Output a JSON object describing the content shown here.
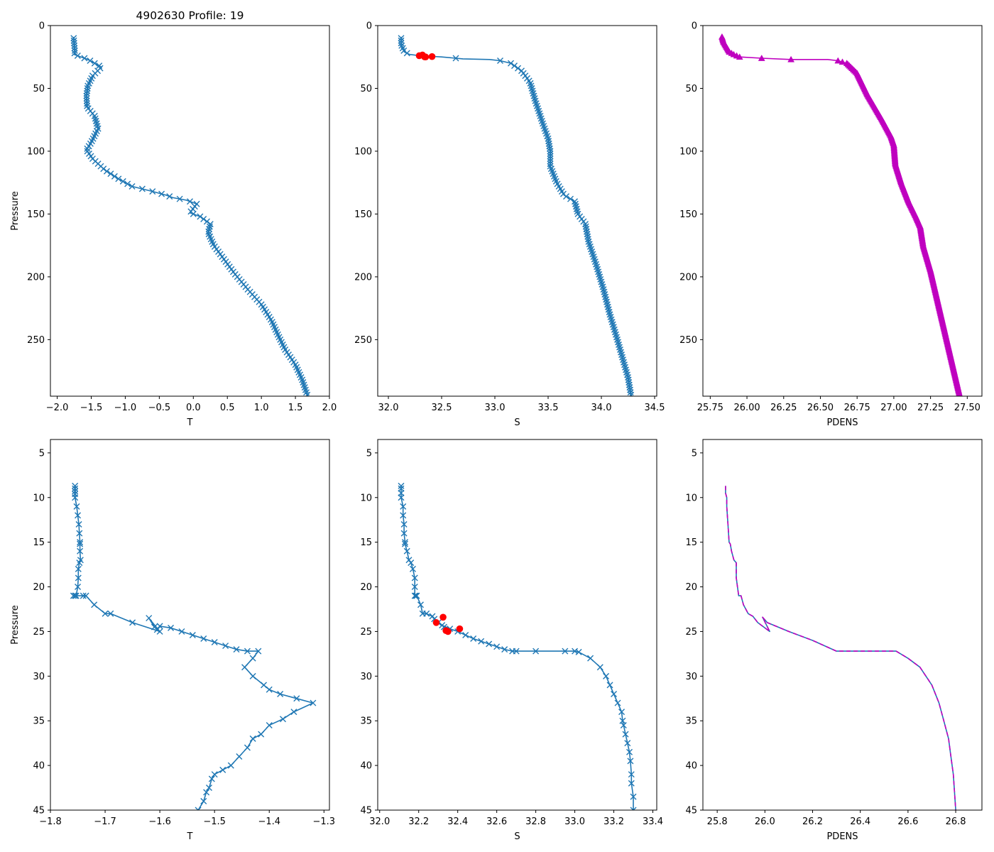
{
  "figure": {
    "title": "4902630 Profile: 19",
    "colors": {
      "line": "#1f77b4",
      "magenta": "#bf00bf",
      "red": "#ff0000",
      "axis": "#000000"
    }
  },
  "chart_data": [
    {
      "type": "line",
      "panel": "top-left",
      "title": "4902630 Profile: 19",
      "xlabel": "T",
      "ylabel": "Pressure",
      "xlim": [
        -2.1,
        2.0
      ],
      "ylim": [
        295,
        0
      ],
      "y_inverted": true,
      "xticks": [
        -2.0,
        -1.5,
        -1.0,
        -0.5,
        0.0,
        0.5,
        1.0,
        1.5,
        2.0
      ],
      "xtick_labels": [
        "−2.0",
        "−1.5",
        "−1.0",
        "−0.5",
        "0.0",
        "0.5",
        "1.0",
        "1.5",
        "2.0"
      ],
      "yticks": [
        0,
        50,
        100,
        150,
        200,
        250
      ],
      "ytick_labels": [
        "0",
        "50",
        "100",
        "150",
        "200",
        "250"
      ],
      "marker": "x",
      "markevery_pressure": 2,
      "series": [
        {
          "name": "T",
          "color": "#1f77b4",
          "x": [
            -1.76,
            -1.75,
            -1.74,
            -1.75,
            -1.65,
            -1.55,
            -1.35,
            -1.48,
            -1.55,
            -1.57,
            -1.56,
            -1.45,
            -1.4,
            -1.5,
            -1.57,
            -1.48,
            -1.3,
            -1.1,
            -0.9,
            -0.6,
            -0.4,
            -0.3,
            -0.1,
            0.05,
            -0.05,
            0.1,
            0.25,
            0.22,
            0.3,
            0.45,
            0.6,
            0.8,
            1.0,
            1.15,
            1.25,
            1.35,
            1.5,
            1.6,
            1.68
          ],
          "y": [
            9,
            15,
            21,
            23,
            25,
            27,
            33,
            40,
            48,
            56,
            65,
            72,
            82,
            93,
            99,
            106,
            115,
            122,
            128,
            132,
            135,
            137,
            139,
            142,
            149,
            152,
            158,
            165,
            175,
            186,
            197,
            210,
            222,
            235,
            247,
            258,
            270,
            282,
            295
          ]
        }
      ]
    },
    {
      "type": "line",
      "panel": "top-middle",
      "xlabel": "S",
      "ylabel": "",
      "xlim": [
        31.9,
        34.52
      ],
      "ylim": [
        295,
        0
      ],
      "y_inverted": true,
      "xticks": [
        32.0,
        32.5,
        33.0,
        33.5,
        34.0,
        34.5
      ],
      "xtick_labels": [
        "32.0",
        "32.5",
        "33.0",
        "33.5",
        "34.0",
        "34.5"
      ],
      "yticks": [
        0,
        50,
        100,
        150,
        200,
        250
      ],
      "ytick_labels": [
        "0",
        "50",
        "100",
        "150",
        "200",
        "250"
      ],
      "marker": "x",
      "markevery_pressure": 2,
      "series": [
        {
          "name": "S",
          "color": "#1f77b4",
          "x": [
            32.12,
            32.12,
            32.15,
            32.2,
            32.3,
            32.5,
            32.7,
            32.95,
            33.05,
            33.15,
            33.25,
            33.33,
            33.38,
            33.45,
            33.5,
            33.52,
            33.52,
            33.58,
            33.65,
            33.75,
            33.78,
            33.85,
            33.88,
            33.95,
            34.02,
            34.08,
            34.15,
            34.2,
            34.25,
            34.28
          ],
          "y": [
            9,
            15,
            21,
            23,
            24,
            25,
            26.5,
            27,
            28,
            30,
            36,
            45,
            60,
            78,
            90,
            100,
            112,
            125,
            135,
            140,
            150,
            158,
            172,
            190,
            210,
            230,
            250,
            265,
            280,
            295
          ]
        }
      ],
      "highlight_points": {
        "name": "flagged",
        "color": "#ff0000",
        "marker": "o",
        "x": [
          32.29,
          32.32,
          32.34,
          32.35,
          32.41
        ],
        "y": [
          24.0,
          23.4,
          24.9,
          25.0,
          24.7
        ]
      }
    },
    {
      "type": "line",
      "panel": "top-right",
      "xlabel": "PDENS",
      "ylabel": "",
      "xlim": [
        25.7,
        27.6
      ],
      "ylim": [
        295,
        0
      ],
      "y_inverted": true,
      "xticks": [
        25.75,
        26.0,
        26.25,
        26.5,
        26.75,
        27.0,
        27.25,
        27.5
      ],
      "xtick_labels": [
        "25.75",
        "26.00",
        "26.25",
        "26.50",
        "26.75",
        "27.00",
        "27.25",
        "27.50"
      ],
      "yticks": [
        0,
        50,
        100,
        150,
        200,
        250
      ],
      "ytick_labels": [
        "0",
        "50",
        "100",
        "150",
        "200",
        "250"
      ],
      "marker": "triangle",
      "markevery_pressure": 1,
      "series": [
        {
          "name": "PDENS",
          "color": "#bf00bf",
          "x": [
            25.83,
            25.84,
            25.86,
            25.88,
            25.91,
            25.95,
            26.1,
            26.3,
            26.55,
            26.62,
            26.68,
            26.75,
            26.82,
            26.92,
            26.98,
            27.0,
            27.01,
            27.05,
            27.1,
            27.15,
            27.18,
            27.2,
            27.25,
            27.3,
            27.35,
            27.4,
            27.45
          ],
          "y": [
            9,
            13,
            17,
            21,
            23,
            25,
            26,
            27,
            27,
            28,
            30,
            38,
            55,
            75,
            88,
            95,
            110,
            125,
            140,
            152,
            160,
            175,
            195,
            220,
            245,
            270,
            295
          ]
        }
      ]
    },
    {
      "type": "line",
      "panel": "bottom-left",
      "xlabel": "T",
      "ylabel": "Pressure",
      "xlim": [
        -1.8,
        -1.29
      ],
      "ylim": [
        45,
        3.5
      ],
      "y_inverted": true,
      "xticks": [
        -1.8,
        -1.7,
        -1.6,
        -1.5,
        -1.4,
        -1.3
      ],
      "xtick_labels": [
        "−1.8",
        "−1.7",
        "−1.6",
        "−1.5",
        "−1.4",
        "−1.3"
      ],
      "yticks": [
        5,
        10,
        15,
        20,
        25,
        30,
        35,
        40,
        45
      ],
      "ytick_labels": [
        "5",
        "10",
        "15",
        "20",
        "25",
        "30",
        "35",
        "40",
        "45"
      ],
      "marker": "x",
      "series": [
        {
          "name": "T",
          "color": "#1f77b4",
          "x": [
            -1.755,
            -1.755,
            -1.755,
            -1.755,
            -1.755,
            -1.752,
            -1.75,
            -1.748,
            -1.747,
            -1.746,
            -1.746,
            -1.746,
            -1.745,
            -1.747,
            -1.749,
            -1.749,
            -1.75,
            -1.753,
            -1.755,
            -1.758,
            -1.74,
            -1.735,
            -1.72,
            -1.7,
            -1.69,
            -1.65,
            -1.6,
            -1.62,
            -1.61,
            -1.605,
            -1.6,
            -1.58,
            -1.56,
            -1.54,
            -1.52,
            -1.5,
            -1.48,
            -1.46,
            -1.44,
            -1.42,
            -1.43,
            -1.445,
            -1.43,
            -1.41,
            -1.4,
            -1.38,
            -1.35,
            -1.32,
            -1.355,
            -1.375,
            -1.4,
            -1.415,
            -1.43,
            -1.44,
            -1.455,
            -1.47,
            -1.485,
            -1.5,
            -1.505,
            -1.51,
            -1.515,
            -1.52,
            -1.53
          ],
          "y": [
            8.7,
            9.0,
            9.3,
            9.6,
            10.0,
            11.0,
            12.0,
            13.0,
            14.0,
            15.0,
            15.2,
            16.0,
            17.0,
            17.3,
            18.0,
            19.0,
            20.0,
            21.0,
            21.0,
            21.0,
            21.0,
            21.0,
            22.0,
            23.0,
            23.0,
            24.0,
            25.0,
            23.5,
            24.5,
            24.8,
            24.4,
            24.6,
            25.0,
            25.4,
            25.8,
            26.2,
            26.6,
            27.0,
            27.2,
            27.2,
            28.0,
            29.0,
            30.0,
            31.0,
            31.5,
            32.0,
            32.5,
            33.0,
            34.0,
            34.8,
            35.5,
            36.5,
            37.0,
            38.0,
            39.0,
            40.0,
            40.5,
            41.0,
            41.5,
            42.5,
            43.0,
            44.0,
            45.0
          ]
        }
      ]
    },
    {
      "type": "line",
      "panel": "bottom-middle",
      "xlabel": "S",
      "ylabel": "",
      "xlim": [
        31.99,
        33.42
      ],
      "ylim": [
        45,
        3.5
      ],
      "y_inverted": true,
      "xticks": [
        32.0,
        32.2,
        32.4,
        32.6,
        32.8,
        33.0,
        33.2,
        33.4
      ],
      "xtick_labels": [
        "32.0",
        "32.2",
        "32.4",
        "32.6",
        "32.8",
        "33.0",
        "33.2",
        "33.4"
      ],
      "yticks": [
        5,
        10,
        15,
        20,
        25,
        30,
        35,
        40,
        45
      ],
      "ytick_labels": [
        "5",
        "10",
        "15",
        "20",
        "25",
        "30",
        "35",
        "40",
        "45"
      ],
      "marker": "x",
      "series": [
        {
          "name": "S",
          "color": "#1f77b4",
          "x": [
            32.11,
            32.11,
            32.11,
            32.11,
            32.12,
            32.12,
            32.125,
            32.125,
            32.13,
            32.13,
            32.14,
            32.15,
            32.16,
            32.17,
            32.18,
            32.18,
            32.18,
            32.185,
            32.19,
            32.21,
            32.22,
            32.24,
            32.27,
            32.3,
            32.33,
            32.28,
            32.32,
            32.36,
            32.4,
            32.44,
            32.48,
            32.52,
            32.56,
            32.6,
            32.64,
            32.68,
            32.7,
            32.8,
            32.95,
            33.0,
            33.02,
            33.08,
            33.13,
            33.16,
            33.18,
            33.2,
            33.22,
            33.24,
            33.245,
            33.25,
            33.26,
            33.27,
            33.28,
            33.285,
            33.29,
            33.29,
            33.3,
            33.3
          ],
          "y": [
            8.7,
            9.0,
            9.5,
            10.0,
            11.0,
            12.0,
            13.0,
            14.0,
            15.0,
            15.2,
            16.0,
            17.0,
            17.3,
            18.0,
            19.0,
            20.0,
            21.0,
            21.0,
            21.0,
            22.0,
            23.0,
            23.0,
            23.3,
            24.0,
            24.5,
            23.6,
            24.3,
            24.7,
            25.0,
            25.4,
            25.8,
            26.1,
            26.4,
            26.7,
            27.0,
            27.2,
            27.2,
            27.2,
            27.2,
            27.2,
            27.3,
            28.0,
            29.0,
            30.0,
            31.0,
            32.0,
            33.0,
            34.0,
            35.0,
            35.5,
            36.5,
            37.5,
            38.5,
            39.5,
            41.0,
            42.0,
            43.5,
            45.0
          ]
        }
      ],
      "highlight_points": {
        "name": "flagged",
        "color": "#ff0000",
        "marker": "o",
        "x": [
          32.29,
          32.325,
          32.34,
          32.35,
          32.41
        ],
        "y": [
          24.0,
          23.4,
          24.9,
          25.0,
          24.7
        ]
      }
    },
    {
      "type": "line",
      "panel": "bottom-right",
      "xlabel": "PDENS",
      "ylabel": "",
      "xlim": [
        25.74,
        26.91
      ],
      "ylim": [
        45,
        3.5
      ],
      "y_inverted": true,
      "xticks": [
        25.8,
        26.0,
        26.2,
        26.4,
        26.6,
        26.8
      ],
      "xtick_labels": [
        "25.8",
        "26.0",
        "26.2",
        "26.4",
        "26.6",
        "26.8"
      ],
      "yticks": [
        5,
        10,
        15,
        20,
        25,
        30,
        35,
        40,
        45
      ],
      "ytick_labels": [
        "5",
        "10",
        "15",
        "20",
        "25",
        "30",
        "35",
        "40",
        "45"
      ],
      "marker": "none",
      "series": [
        {
          "name": "PDENS",
          "color": "#1f77b4",
          "style": "solid",
          "x": [
            25.835,
            25.835,
            25.84,
            25.84,
            25.845,
            25.85,
            25.855,
            25.86,
            25.87,
            25.88,
            25.88,
            25.89,
            25.9,
            25.91,
            25.93,
            25.95,
            25.97,
            26.02,
            25.99,
            26.01,
            26.1,
            26.2,
            26.3,
            26.55,
            26.6,
            26.65,
            26.7,
            26.73,
            26.75,
            26.77,
            26.78,
            26.79,
            26.8
          ],
          "y": [
            8.7,
            9.5,
            10.0,
            11.0,
            13.0,
            15.0,
            15.2,
            16.0,
            17.0,
            17.3,
            19.0,
            21.0,
            21.0,
            22.0,
            23.0,
            23.3,
            24.0,
            25.0,
            23.4,
            24.0,
            25.0,
            26.0,
            27.2,
            27.2,
            28.0,
            29.0,
            31.0,
            33.0,
            35.0,
            37.0,
            39.0,
            41.0,
            45.0
          ]
        },
        {
          "name": "PDENS-dashed",
          "color": "#bf00bf",
          "style": "dashed",
          "x": [
            25.835,
            25.835,
            25.84,
            25.84,
            25.845,
            25.85,
            25.855,
            25.86,
            25.87,
            25.88,
            25.88,
            25.89,
            25.9,
            25.91,
            25.93,
            25.95,
            25.97,
            26.02,
            25.99,
            26.01,
            26.1,
            26.2,
            26.3,
            26.55,
            26.6,
            26.65,
            26.7,
            26.73,
            26.75,
            26.77,
            26.78,
            26.79,
            26.8
          ],
          "y": [
            8.7,
            9.5,
            10.0,
            11.0,
            13.0,
            15.0,
            15.2,
            16.0,
            17.0,
            17.3,
            19.0,
            21.0,
            21.0,
            22.0,
            23.0,
            23.3,
            24.0,
            25.0,
            23.4,
            24.0,
            25.0,
            26.0,
            27.2,
            27.2,
            28.0,
            29.0,
            31.0,
            33.0,
            35.0,
            37.0,
            39.0,
            41.0,
            45.0
          ]
        }
      ]
    }
  ]
}
